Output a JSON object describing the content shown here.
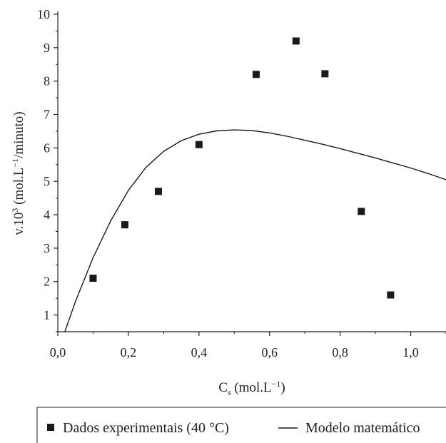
{
  "chart_data": {
    "type": "scatter",
    "title": "",
    "xlabel": {
      "main": "C",
      "sub": "s",
      "rest": " (mol.L",
      "sup": "−1",
      "close": ")"
    },
    "ylabel": {
      "main": "v.10",
      "sup1": "3",
      "mid": " (mol.L",
      "sup2": "−1",
      "rest": "/minuto)"
    },
    "xlim": [
      0.0,
      1.1
    ],
    "ylim": [
      0.5,
      10
    ],
    "x_ticks": [
      0.0,
      0.2,
      0.4,
      0.6,
      0.8,
      1.0
    ],
    "x_tick_labels": [
      "0,0",
      "0,2",
      "0,4",
      "0,6",
      "0,8",
      "1,0"
    ],
    "y_ticks": [
      1,
      2,
      3,
      4,
      5,
      6,
      7,
      8,
      9,
      10
    ],
    "y_tick_labels": [
      "1",
      "2",
      "3",
      "4",
      "5",
      "6",
      "7",
      "8",
      "9",
      "10"
    ],
    "grid": false,
    "legend_position": "bottom",
    "colors": {
      "marker": "#1a1a1a",
      "line": "#1a1a1a",
      "axis": "#231f20"
    },
    "series": [
      {
        "name": "Dados experimentais (40 °C)",
        "kind": "scatter",
        "marker": "square",
        "points": [
          {
            "x": 0.1,
            "y": 2.1
          },
          {
            "x": 0.19,
            "y": 3.7
          },
          {
            "x": 0.285,
            "y": 4.7
          },
          {
            "x": 0.4,
            "y": 6.1
          },
          {
            "x": 0.562,
            "y": 8.2
          },
          {
            "x": 0.675,
            "y": 9.2
          },
          {
            "x": 0.757,
            "y": 8.22
          },
          {
            "x": 0.86,
            "y": 4.1
          },
          {
            "x": 0.943,
            "y": 1.6
          }
        ]
      },
      {
        "name": "Modelo matemático",
        "kind": "line",
        "points": [
          {
            "x": 0.02,
            "y": 0.5
          },
          {
            "x": 0.05,
            "y": 1.4
          },
          {
            "x": 0.1,
            "y": 2.72
          },
          {
            "x": 0.15,
            "y": 3.82
          },
          {
            "x": 0.2,
            "y": 4.73
          },
          {
            "x": 0.25,
            "y": 5.42
          },
          {
            "x": 0.3,
            "y": 5.9
          },
          {
            "x": 0.35,
            "y": 6.22
          },
          {
            "x": 0.4,
            "y": 6.41
          },
          {
            "x": 0.45,
            "y": 6.51
          },
          {
            "x": 0.5,
            "y": 6.54
          },
          {
            "x": 0.55,
            "y": 6.52
          },
          {
            "x": 0.6,
            "y": 6.45
          },
          {
            "x": 0.65,
            "y": 6.35
          },
          {
            "x": 0.7,
            "y": 6.23
          },
          {
            "x": 0.75,
            "y": 6.11
          },
          {
            "x": 0.8,
            "y": 5.98
          },
          {
            "x": 0.85,
            "y": 5.84
          },
          {
            "x": 0.9,
            "y": 5.7
          },
          {
            "x": 0.95,
            "y": 5.55
          },
          {
            "x": 1.0,
            "y": 5.4
          },
          {
            "x": 1.05,
            "y": 5.23
          },
          {
            "x": 1.1,
            "y": 5.05
          }
        ]
      }
    ]
  }
}
